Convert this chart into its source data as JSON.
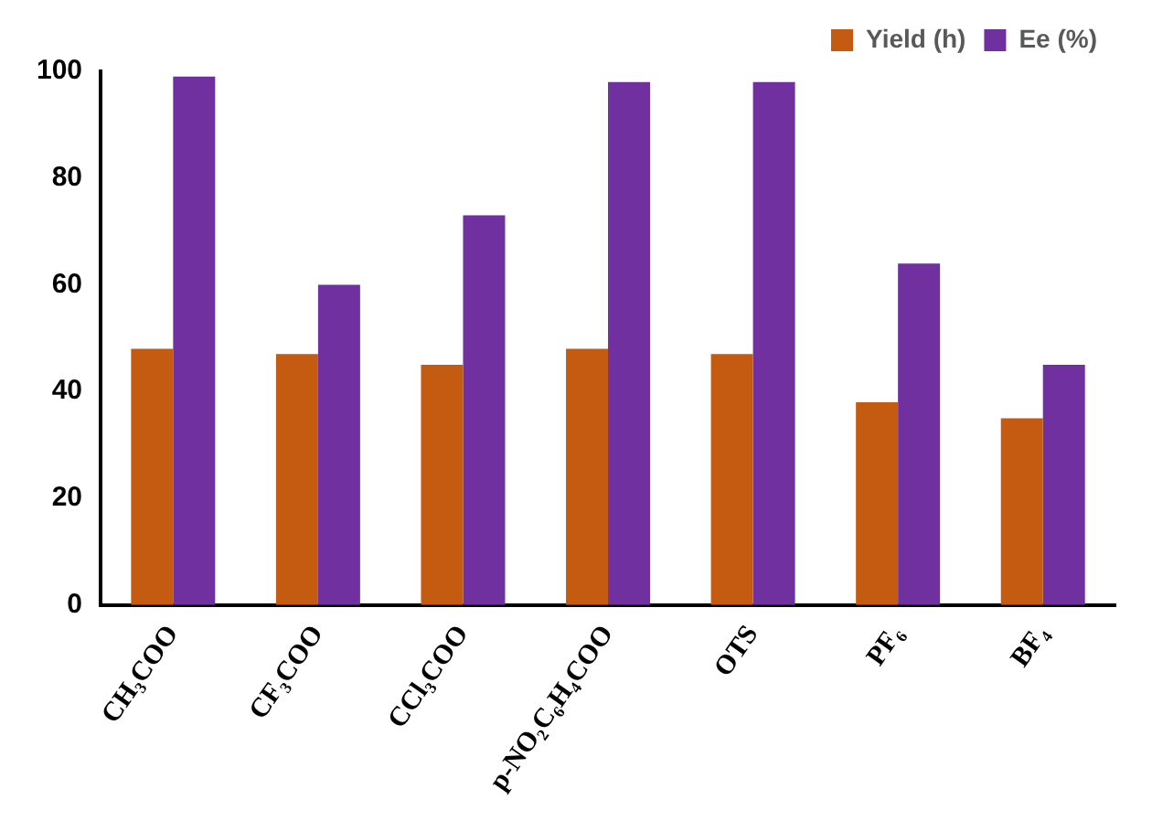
{
  "chart_data": {
    "type": "bar",
    "categories": [
      "CH₃COO",
      "CF₃COO",
      "CCl₃COO",
      "p-NO₂C₆H₄COO",
      "OTS",
      "PF₆",
      "BF₄"
    ],
    "series": [
      {
        "name": "Yield (h)",
        "color": "#c55a11",
        "values": [
          48,
          47,
          45,
          48,
          47,
          38,
          35
        ]
      },
      {
        "name": "Ee (%)",
        "color": "#7030a0",
        "values": [
          99,
          60,
          73,
          98,
          98,
          64,
          45
        ]
      }
    ],
    "ylim": [
      0,
      100
    ],
    "yticks": [
      0,
      20,
      40,
      60,
      80,
      100
    ],
    "grid": false,
    "legend": "top right"
  }
}
